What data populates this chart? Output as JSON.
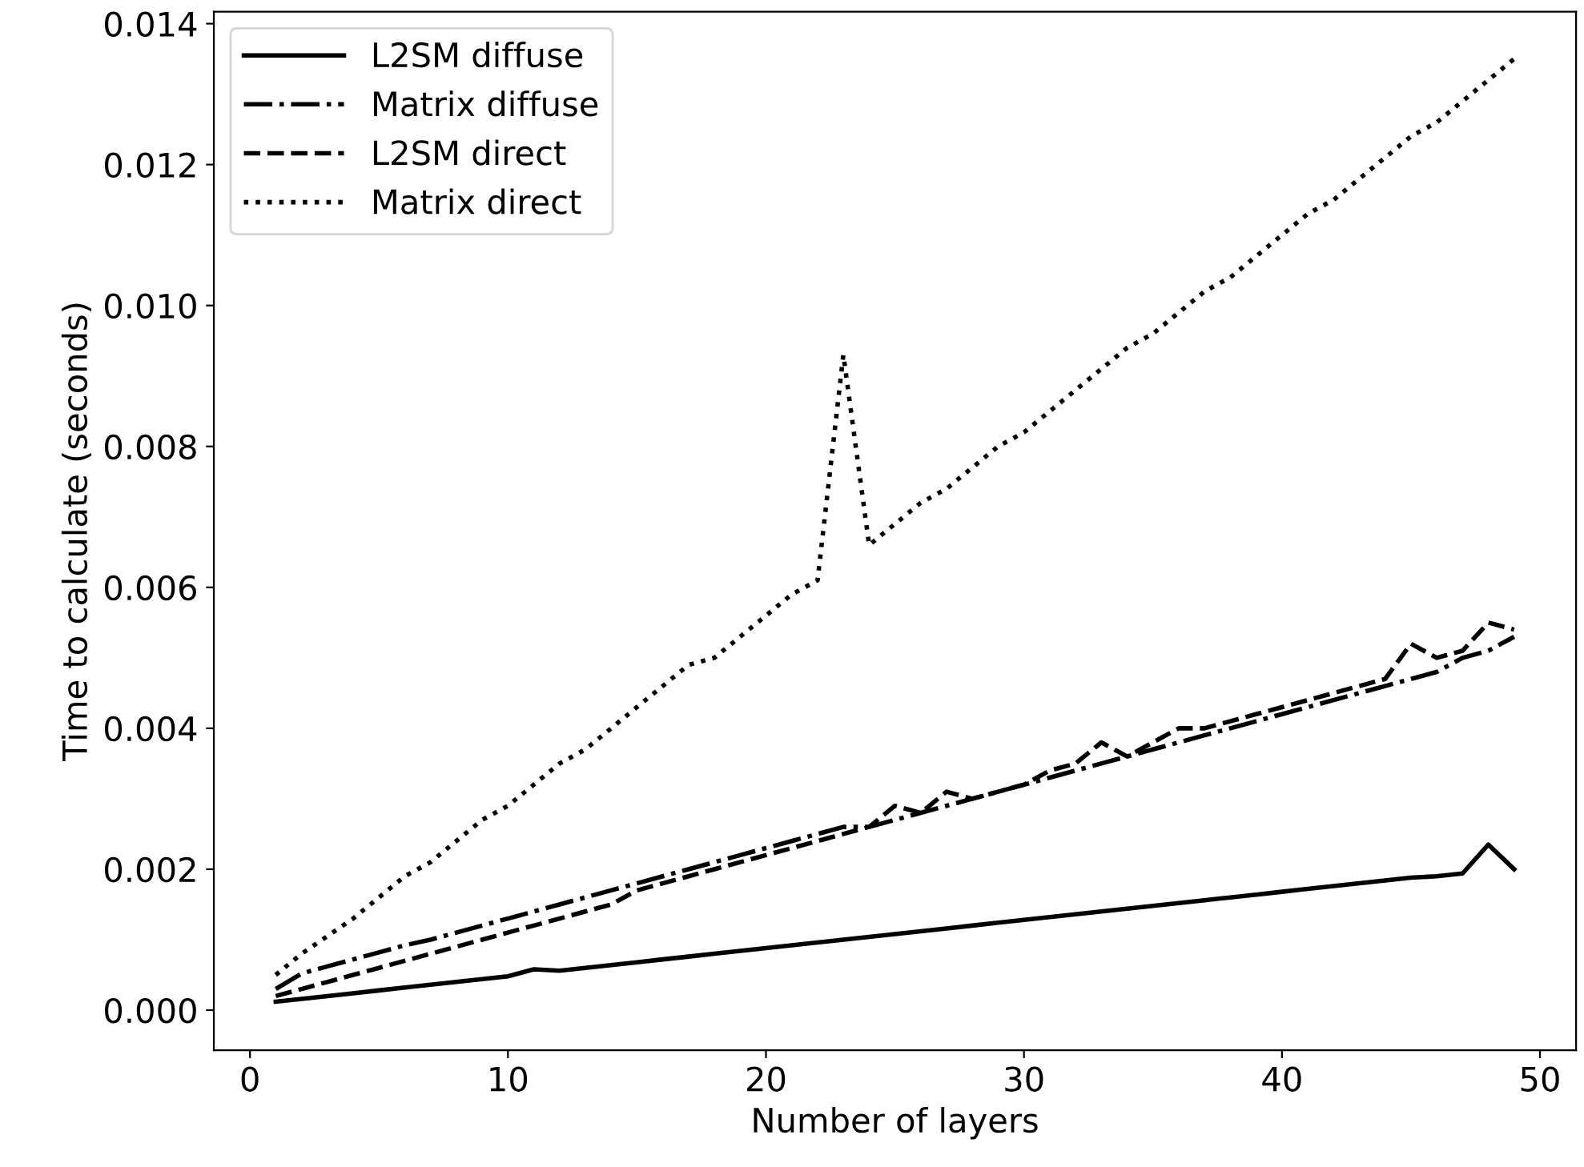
{
  "chart_data": {
    "type": "line",
    "xlabel": "Number of layers",
    "ylabel": "Time to calculate (seconds)",
    "x": [
      1,
      2,
      3,
      4,
      5,
      6,
      7,
      8,
      9,
      10,
      11,
      12,
      13,
      14,
      15,
      16,
      17,
      18,
      19,
      20,
      21,
      22,
      23,
      24,
      25,
      26,
      27,
      28,
      29,
      30,
      31,
      32,
      33,
      34,
      35,
      36,
      37,
      38,
      39,
      40,
      41,
      42,
      43,
      44,
      45,
      46,
      47,
      48,
      49
    ],
    "xlim": [
      -1.4,
      51.4
    ],
    "xticks": [
      0,
      10,
      20,
      30,
      40,
      50
    ],
    "ylim": [
      -0.00057,
      0.01417
    ],
    "yticks": [
      {
        "value": 0,
        "label": "0.000"
      },
      {
        "value": 0.002,
        "label": "0.002"
      },
      {
        "value": 0.004,
        "label": "0.004"
      },
      {
        "value": 0.006,
        "label": "0.006"
      },
      {
        "value": 0.008,
        "label": "0.008"
      },
      {
        "value": 0.01,
        "label": "0.010"
      },
      {
        "value": 0.012,
        "label": "0.012"
      },
      {
        "value": 0.014,
        "label": "0.014"
      }
    ],
    "legend": "top left",
    "grid": false,
    "series": [
      {
        "name": "L2SM diffuse",
        "color": "#000000",
        "line_style": "solid",
        "values": [
          0.00012,
          0.00016,
          0.0002,
          0.00024,
          0.00028,
          0.00032,
          0.00036,
          0.0004,
          0.00044,
          0.00048,
          0.00058,
          0.00056,
          0.0006,
          0.00064,
          0.00068,
          0.00072,
          0.00076,
          0.0008,
          0.00084,
          0.00088,
          0.00092,
          0.00096,
          0.001,
          0.00104,
          0.00108,
          0.00112,
          0.00116,
          0.0012,
          0.00124,
          0.00128,
          0.00132,
          0.00136,
          0.0014,
          0.00144,
          0.00148,
          0.00152,
          0.00156,
          0.0016,
          0.00164,
          0.00168,
          0.00172,
          0.00176,
          0.0018,
          0.00184,
          0.00188,
          0.0019,
          0.00194,
          0.00235,
          0.002
        ]
      },
      {
        "name": "Matrix diffuse",
        "color": "#000000",
        "line_style": "dashdot",
        "values": [
          0.0003,
          0.00052,
          0.00062,
          0.00072,
          0.00082,
          0.00092,
          0.001,
          0.0011,
          0.0012,
          0.0013,
          0.0014,
          0.0015,
          0.0016,
          0.0017,
          0.0018,
          0.0019,
          0.002,
          0.0021,
          0.0022,
          0.0023,
          0.0024,
          0.0025,
          0.0026,
          0.0026,
          0.0027,
          0.0028,
          0.0029,
          0.003,
          0.0031,
          0.0032,
          0.0033,
          0.0034,
          0.0035,
          0.0036,
          0.0037,
          0.0038,
          0.0039,
          0.004,
          0.0041,
          0.0042,
          0.0043,
          0.0044,
          0.0045,
          0.0046,
          0.0047,
          0.0048,
          0.005,
          0.0051,
          0.0053
        ]
      },
      {
        "name": "L2SM direct",
        "color": "#000000",
        "line_style": "dashed",
        "values": [
          0.0002,
          0.0003,
          0.0004,
          0.0005,
          0.0006,
          0.0007,
          0.0008,
          0.0009,
          0.001,
          0.0011,
          0.0012,
          0.0013,
          0.0014,
          0.0015,
          0.0017,
          0.0018,
          0.0019,
          0.002,
          0.0021,
          0.0022,
          0.0023,
          0.0024,
          0.0025,
          0.0026,
          0.0029,
          0.0028,
          0.0031,
          0.003,
          0.0031,
          0.0032,
          0.0034,
          0.0035,
          0.0038,
          0.0036,
          0.0038,
          0.004,
          0.004,
          0.0041,
          0.0042,
          0.0043,
          0.0044,
          0.0045,
          0.0046,
          0.0047,
          0.0052,
          0.005,
          0.0051,
          0.0055,
          0.0054
        ]
      },
      {
        "name": "Matrix direct",
        "color": "#000000",
        "line_style": "dotted",
        "values": [
          0.0005,
          0.0008,
          0.00105,
          0.0013,
          0.0016,
          0.0019,
          0.0021,
          0.0024,
          0.0027,
          0.0029,
          0.0032,
          0.0035,
          0.0037,
          0.004,
          0.0043,
          0.0046,
          0.0049,
          0.005,
          0.0053,
          0.0056,
          0.0059,
          0.0061,
          0.0093,
          0.0066,
          0.0069,
          0.0072,
          0.0074,
          0.0077,
          0.008,
          0.0082,
          0.0085,
          0.0088,
          0.0091,
          0.0094,
          0.0096,
          0.0099,
          0.0102,
          0.0104,
          0.0107,
          0.011,
          0.0113,
          0.0115,
          0.0118,
          0.0121,
          0.0124,
          0.0126,
          0.0129,
          0.0132,
          0.0135
        ]
      }
    ]
  }
}
